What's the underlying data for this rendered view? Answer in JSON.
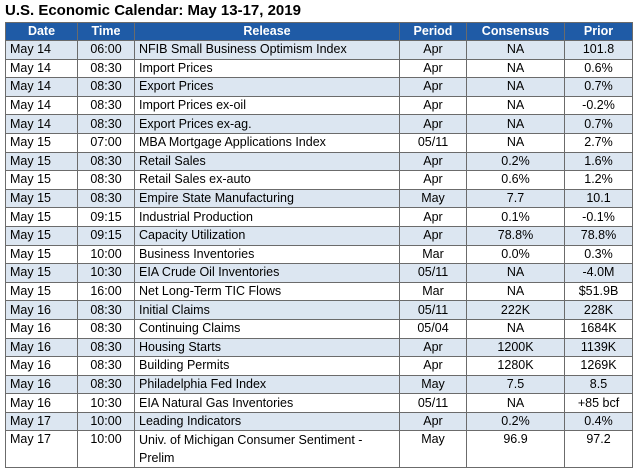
{
  "title": "U.S. Economic Calendar: May 13-17, 2019",
  "colors": {
    "header_bg": "#1f5ba6",
    "header_text": "#ffffff",
    "shade_row": "#dce6f1",
    "grid": "#6b6b6b"
  },
  "columns": [
    "Date",
    "Time",
    "Release",
    "Period",
    "Consensus",
    "Prior"
  ],
  "rows": [
    {
      "date": "May 14",
      "time": "06:00",
      "release": "NFIB Small Business Optimism Index",
      "period": "Apr",
      "consensus": "NA",
      "prior": "101.8",
      "shaded": true
    },
    {
      "date": "May 14",
      "time": "08:30",
      "release": "Import Prices",
      "period": "Apr",
      "consensus": "NA",
      "prior": "0.6%",
      "shaded": false
    },
    {
      "date": "May 14",
      "time": "08:30",
      "release": "Export Prices",
      "period": "Apr",
      "consensus": "NA",
      "prior": "0.7%",
      "shaded": true
    },
    {
      "date": "May 14",
      "time": "08:30",
      "release": "Import Prices ex-oil",
      "period": "Apr",
      "consensus": "NA",
      "prior": "-0.2%",
      "shaded": false
    },
    {
      "date": "May 14",
      "time": "08:30",
      "release": "Export Prices ex-ag.",
      "period": "Apr",
      "consensus": "NA",
      "prior": "0.7%",
      "shaded": true
    },
    {
      "date": "May 15",
      "time": "07:00",
      "release": "MBA Mortgage Applications Index",
      "period": "05/11",
      "consensus": "NA",
      "prior": "2.7%",
      "shaded": false
    },
    {
      "date": "May 15",
      "time": "08:30",
      "release": "Retail Sales",
      "period": "Apr",
      "consensus": "0.2%",
      "prior": "1.6%",
      "shaded": true
    },
    {
      "date": "May 15",
      "time": "08:30",
      "release": "Retail Sales ex-auto",
      "period": "Apr",
      "consensus": "0.6%",
      "prior": "1.2%",
      "shaded": false
    },
    {
      "date": "May 15",
      "time": "08:30",
      "release": "Empire State Manufacturing",
      "period": "May",
      "consensus": "7.7",
      "prior": "10.1",
      "shaded": true
    },
    {
      "date": "May 15",
      "time": "09:15",
      "release": "Industrial Production",
      "period": "Apr",
      "consensus": "0.1%",
      "prior": "-0.1%",
      "shaded": false
    },
    {
      "date": "May 15",
      "time": "09:15",
      "release": "Capacity Utilization",
      "period": "Apr",
      "consensus": "78.8%",
      "prior": "78.8%",
      "shaded": true
    },
    {
      "date": "May 15",
      "time": "10:00",
      "release": "Business Inventories",
      "period": "Mar",
      "consensus": "0.0%",
      "prior": "0.3%",
      "shaded": false
    },
    {
      "date": "May 15",
      "time": "10:30",
      "release": "EIA Crude Oil Inventories",
      "period": "05/11",
      "consensus": "NA",
      "prior": "-4.0M",
      "shaded": true
    },
    {
      "date": "May 15",
      "time": "16:00",
      "release": "Net Long-Term TIC Flows",
      "period": "Mar",
      "consensus": "NA",
      "prior": "$51.9B",
      "shaded": false
    },
    {
      "date": "May 16",
      "time": "08:30",
      "release": "Initial Claims",
      "period": "05/11",
      "consensus": "222K",
      "prior": "228K",
      "shaded": true
    },
    {
      "date": "May 16",
      "time": "08:30",
      "release": "Continuing Claims",
      "period": "05/04",
      "consensus": "NA",
      "prior": "1684K",
      "shaded": false
    },
    {
      "date": "May 16",
      "time": "08:30",
      "release": "Housing Starts",
      "period": "Apr",
      "consensus": "1200K",
      "prior": "1139K",
      "shaded": true
    },
    {
      "date": "May 16",
      "time": "08:30",
      "release": "Building Permits",
      "period": "Apr",
      "consensus": "1280K",
      "prior": "1269K",
      "shaded": false
    },
    {
      "date": "May 16",
      "time": "08:30",
      "release": "Philadelphia Fed Index",
      "period": "May",
      "consensus": "7.5",
      "prior": "8.5",
      "shaded": true
    },
    {
      "date": "May 16",
      "time": "10:30",
      "release": "EIA Natural Gas Inventories",
      "period": "05/11",
      "consensus": "NA",
      "prior": "+85 bcf",
      "shaded": false
    },
    {
      "date": "May 17",
      "time": "10:00",
      "release": "Leading Indicators",
      "period": "Apr",
      "consensus": "0.2%",
      "prior": "0.4%",
      "shaded": true
    },
    {
      "date": "May 17",
      "time": "10:00",
      "release": "Univ. of Michigan Consumer Sentiment - Prelim",
      "period": "May",
      "consensus": "96.9",
      "prior": "97.2",
      "shaded": false,
      "multiline": true
    }
  ]
}
